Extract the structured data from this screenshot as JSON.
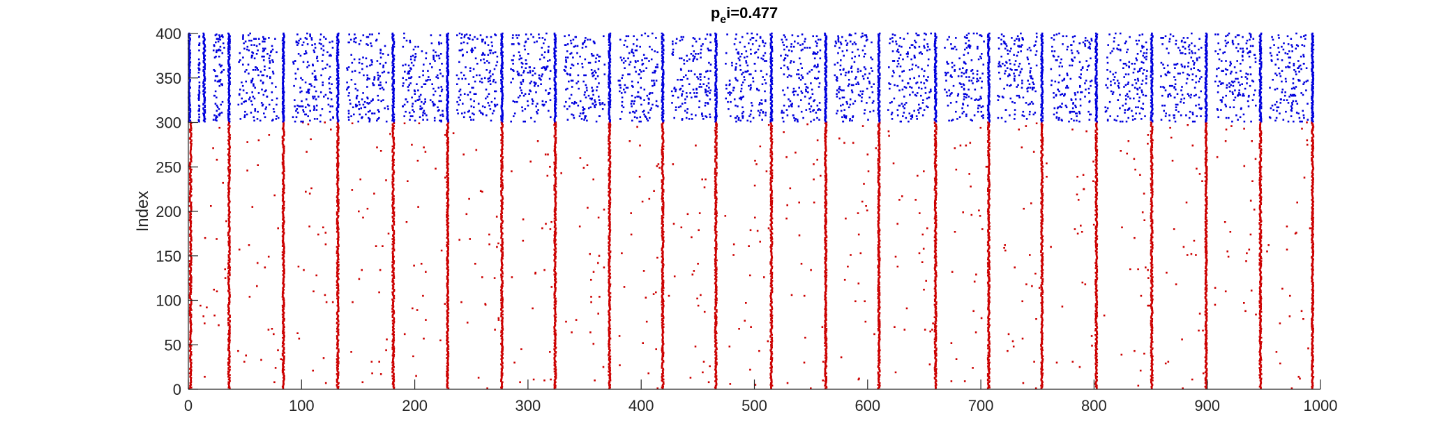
{
  "chart_data": {
    "type": "scatter",
    "title": {
      "base": "p",
      "subscript": "e",
      "rest": "i=0.477"
    },
    "xlabel": "",
    "ylabel": "Index",
    "xlim": [
      0,
      1000
    ],
    "ylim": [
      0,
      400
    ],
    "x_ticks": [
      0,
      100,
      200,
      300,
      400,
      500,
      600,
      700,
      800,
      900,
      1000
    ],
    "y_ticks": [
      0,
      50,
      100,
      150,
      200,
      250,
      300,
      350,
      400
    ],
    "x_tick_labels": [
      "0",
      "100",
      "200",
      "300",
      "400",
      "500",
      "600",
      "700",
      "800",
      "900",
      "1000"
    ],
    "y_tick_labels": [
      "0",
      "50",
      "100",
      "150",
      "200",
      "250",
      "300",
      "350",
      "400"
    ],
    "grid": false,
    "legend": "none",
    "series": [
      {
        "color": "#cc0000",
        "index_range": [
          1,
          300
        ],
        "synchronous_burst_times": [
          2,
          36,
          84,
          132,
          181,
          229,
          277,
          324,
          372,
          419,
          466,
          515,
          563,
          610,
          660,
          707,
          754,
          802,
          851,
          899,
          947,
          993
        ],
        "scattered_spike_density": "sparse"
      },
      {
        "color": "#0000dd",
        "index_range": [
          301,
          400
        ],
        "synchronous_burst_times": [
          1,
          14,
          36,
          84,
          132,
          181,
          229,
          277,
          324,
          372,
          419,
          466,
          515,
          563,
          610,
          660,
          707,
          754,
          802,
          851,
          899,
          947,
          993
        ],
        "scattered_spike_density": "dense"
      }
    ]
  }
}
